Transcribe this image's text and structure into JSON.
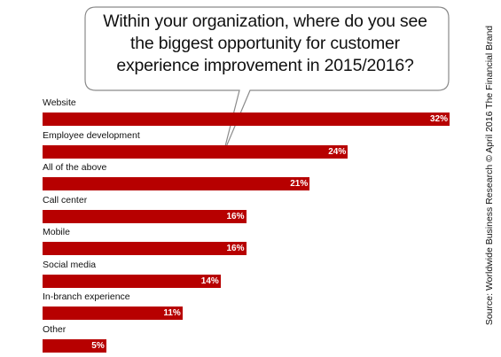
{
  "chart_data": {
    "type": "bar",
    "orientation": "horizontal",
    "title": "Within your organization, where do you see the biggest opportunity for customer experience improvement in 2015/2016?",
    "categories": [
      "Website",
      "Employee development",
      "All of the above",
      "Call center",
      "Mobile",
      "Social media",
      "In-branch experience",
      "Other"
    ],
    "values": [
      32,
      24,
      21,
      16,
      16,
      14,
      11,
      5
    ],
    "value_labels": [
      "32%",
      "24%",
      "21%",
      "16%",
      "16%",
      "14%",
      "11%",
      "5%"
    ],
    "unit": "%",
    "xlim": [
      0,
      32
    ],
    "grid": false,
    "legend": "none",
    "bar_color": "#b70000",
    "source": "Source: Worldwide Business Research © April 2016 The Financial Brand"
  }
}
